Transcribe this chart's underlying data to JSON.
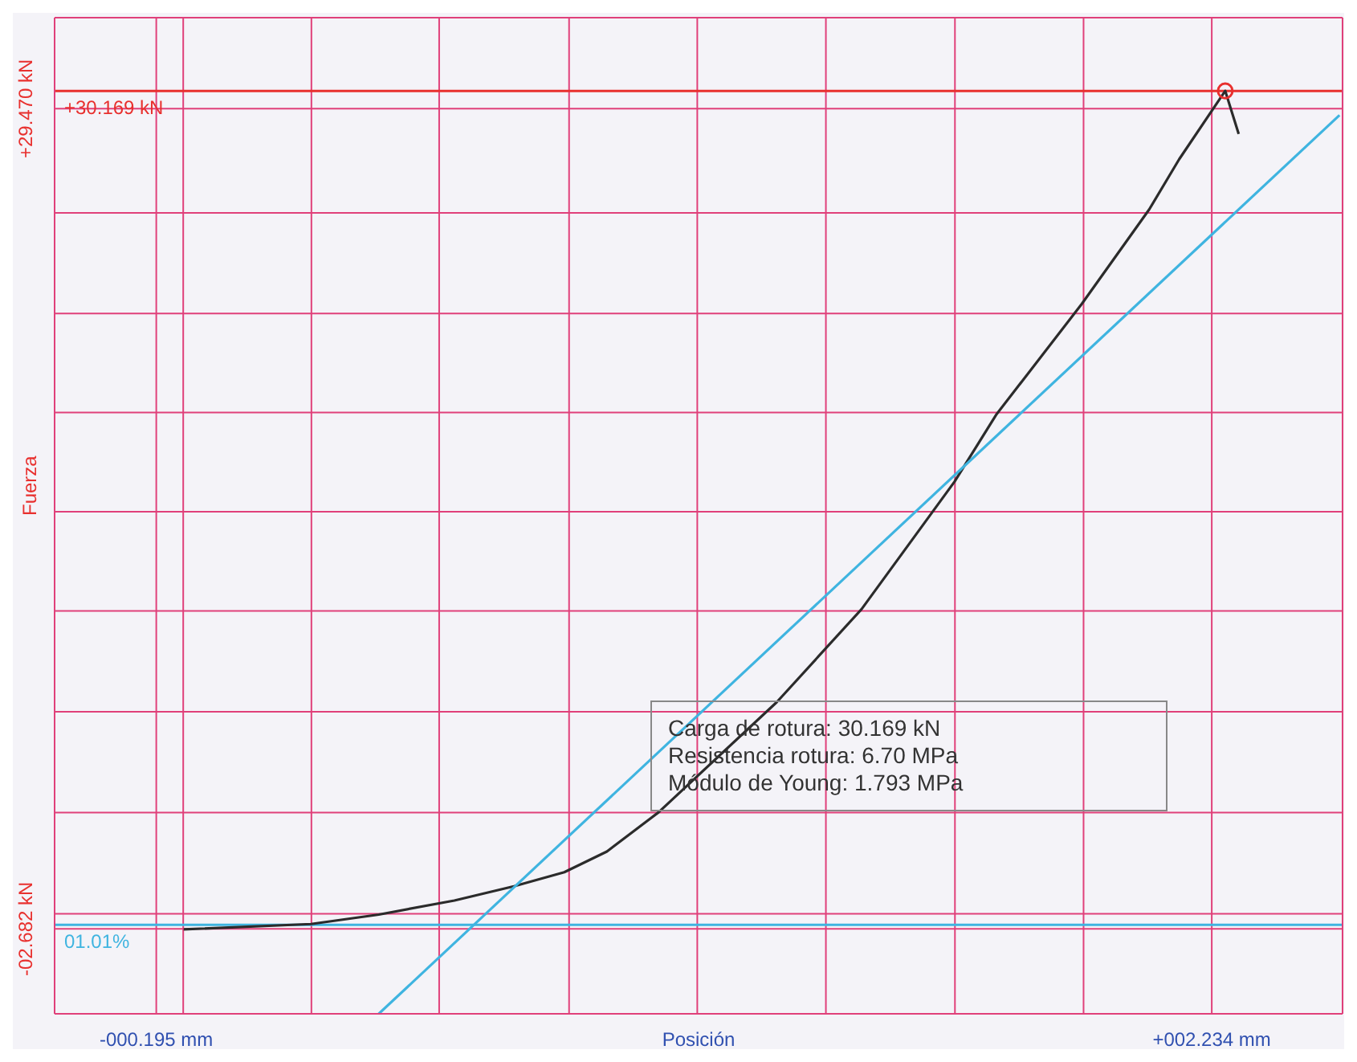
{
  "chart_data": {
    "type": "line",
    "xlabel": "Posición",
    "ylabel": "Fuerza",
    "xlim": [
      -0.429,
      2.535
    ],
    "ylim": [
      -6.01,
      33.04
    ],
    "xticks": [
      {
        "value": -0.195,
        "label": "-000.195 mm"
      },
      {
        "value": -0.133,
        "label": null
      },
      {
        "value": 0.162,
        "label": null
      },
      {
        "value": 0.456,
        "label": null
      },
      {
        "value": 0.755,
        "label": null
      },
      {
        "value": 1.05,
        "label": null
      },
      {
        "value": 1.346,
        "label": null
      },
      {
        "value": 1.643,
        "label": null
      },
      {
        "value": 1.939,
        "label": null
      },
      {
        "value": 2.234,
        "label": "+002.234 mm"
      }
    ],
    "yticks": [
      {
        "value": -2.682,
        "label": "-02.682 kN"
      },
      {
        "value": -2.09,
        "label": null
      },
      {
        "value": 1.88,
        "label": null
      },
      {
        "value": 5.83,
        "label": null
      },
      {
        "value": 9.78,
        "label": null
      },
      {
        "value": 13.67,
        "label": null
      },
      {
        "value": 17.56,
        "label": null
      },
      {
        "value": 21.44,
        "label": null
      },
      {
        "value": 25.39,
        "label": null
      },
      {
        "value": 29.47,
        "label": "+29.470 kN"
      }
    ],
    "grid": true,
    "line_style": "solid",
    "marker": "none",
    "series": [
      {
        "color": "#2b2b2b",
        "x": [
          -0.132,
          0.161,
          0.317,
          0.491,
          0.628,
          0.744,
          0.842,
          0.961,
          1.233,
          1.428,
          1.642,
          1.739,
          1.935,
          2.09,
          2.159,
          2.265,
          2.296
        ],
        "values": [
          -2.7,
          -2.49,
          -2.12,
          -1.57,
          -1.01,
          -0.46,
          0.35,
          1.89,
          6.21,
          9.85,
          14.85,
          17.5,
          21.82,
          25.52,
          27.49,
          30.17,
          28.48
        ]
      },
      {
        "color": "#3fb4e0",
        "x": [
          0.317,
          2.528
        ],
        "values": [
          -6.01,
          29.22
        ]
      },
      {
        "type": "scatter",
        "color": "#e8302e",
        "marker": "circle",
        "x": [
          2.265
        ],
        "values": [
          30.17
        ]
      }
    ],
    "ref_lines": [
      {
        "axis": "y",
        "value": 30.169,
        "label": "+30.169 kN",
        "color": "#e8302e"
      },
      {
        "axis": "y",
        "value": -2.52,
        "color": "#3fb4e0"
      }
    ],
    "annotations": [
      {
        "text": "01.01%",
        "y": -2.52
      },
      "Carga de rotura: 30.169 kN",
      "Resistencia rotura: 6.70 MPa",
      "Módulo de Young: 1.793 MPa"
    ]
  }
}
